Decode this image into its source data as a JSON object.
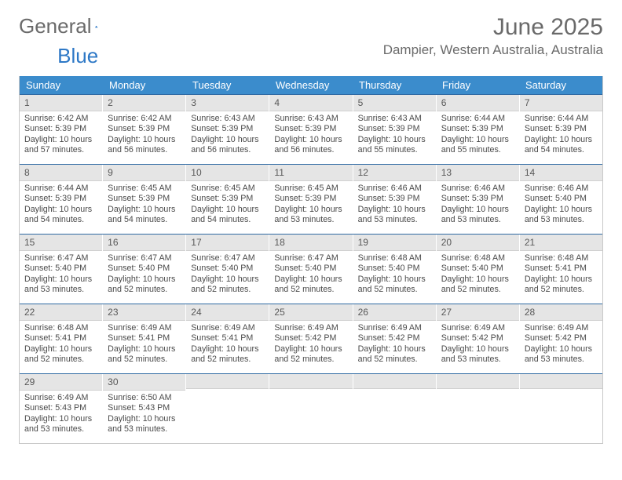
{
  "brand": {
    "word1": "General",
    "word2": "Blue",
    "accent_color": "#2d78c6"
  },
  "header": {
    "title": "June 2025",
    "location": "Dampier, Western Australia, Australia"
  },
  "calendar": {
    "day_headers": [
      "Sunday",
      "Monday",
      "Tuesday",
      "Wednesday",
      "Thursday",
      "Friday",
      "Saturday"
    ],
    "header_bg": "#3b8ccc",
    "header_fg": "#ffffff",
    "row_divider": "#2f6aa3",
    "datebar_bg": "#e5e5e5",
    "cell_label_prefixes": {
      "sunrise": "Sunrise: ",
      "sunset": "Sunset: ",
      "daylight_prefix": "Daylight: ",
      "hours_word": " hours",
      "minutes_suffix": " minutes."
    },
    "days": [
      {
        "n": 1,
        "sunrise": "6:42 AM",
        "sunset": "5:39 PM",
        "day_h": 10,
        "day_m": 57
      },
      {
        "n": 2,
        "sunrise": "6:42 AM",
        "sunset": "5:39 PM",
        "day_h": 10,
        "day_m": 56
      },
      {
        "n": 3,
        "sunrise": "6:43 AM",
        "sunset": "5:39 PM",
        "day_h": 10,
        "day_m": 56
      },
      {
        "n": 4,
        "sunrise": "6:43 AM",
        "sunset": "5:39 PM",
        "day_h": 10,
        "day_m": 56
      },
      {
        "n": 5,
        "sunrise": "6:43 AM",
        "sunset": "5:39 PM",
        "day_h": 10,
        "day_m": 55
      },
      {
        "n": 6,
        "sunrise": "6:44 AM",
        "sunset": "5:39 PM",
        "day_h": 10,
        "day_m": 55
      },
      {
        "n": 7,
        "sunrise": "6:44 AM",
        "sunset": "5:39 PM",
        "day_h": 10,
        "day_m": 54
      },
      {
        "n": 8,
        "sunrise": "6:44 AM",
        "sunset": "5:39 PM",
        "day_h": 10,
        "day_m": 54
      },
      {
        "n": 9,
        "sunrise": "6:45 AM",
        "sunset": "5:39 PM",
        "day_h": 10,
        "day_m": 54
      },
      {
        "n": 10,
        "sunrise": "6:45 AM",
        "sunset": "5:39 PM",
        "day_h": 10,
        "day_m": 54
      },
      {
        "n": 11,
        "sunrise": "6:45 AM",
        "sunset": "5:39 PM",
        "day_h": 10,
        "day_m": 53
      },
      {
        "n": 12,
        "sunrise": "6:46 AM",
        "sunset": "5:39 PM",
        "day_h": 10,
        "day_m": 53
      },
      {
        "n": 13,
        "sunrise": "6:46 AM",
        "sunset": "5:39 PM",
        "day_h": 10,
        "day_m": 53
      },
      {
        "n": 14,
        "sunrise": "6:46 AM",
        "sunset": "5:40 PM",
        "day_h": 10,
        "day_m": 53
      },
      {
        "n": 15,
        "sunrise": "6:47 AM",
        "sunset": "5:40 PM",
        "day_h": 10,
        "day_m": 53
      },
      {
        "n": 16,
        "sunrise": "6:47 AM",
        "sunset": "5:40 PM",
        "day_h": 10,
        "day_m": 52
      },
      {
        "n": 17,
        "sunrise": "6:47 AM",
        "sunset": "5:40 PM",
        "day_h": 10,
        "day_m": 52
      },
      {
        "n": 18,
        "sunrise": "6:47 AM",
        "sunset": "5:40 PM",
        "day_h": 10,
        "day_m": 52
      },
      {
        "n": 19,
        "sunrise": "6:48 AM",
        "sunset": "5:40 PM",
        "day_h": 10,
        "day_m": 52
      },
      {
        "n": 20,
        "sunrise": "6:48 AM",
        "sunset": "5:40 PM",
        "day_h": 10,
        "day_m": 52
      },
      {
        "n": 21,
        "sunrise": "6:48 AM",
        "sunset": "5:41 PM",
        "day_h": 10,
        "day_m": 52
      },
      {
        "n": 22,
        "sunrise": "6:48 AM",
        "sunset": "5:41 PM",
        "day_h": 10,
        "day_m": 52
      },
      {
        "n": 23,
        "sunrise": "6:49 AM",
        "sunset": "5:41 PM",
        "day_h": 10,
        "day_m": 52
      },
      {
        "n": 24,
        "sunrise": "6:49 AM",
        "sunset": "5:41 PM",
        "day_h": 10,
        "day_m": 52
      },
      {
        "n": 25,
        "sunrise": "6:49 AM",
        "sunset": "5:42 PM",
        "day_h": 10,
        "day_m": 52
      },
      {
        "n": 26,
        "sunrise": "6:49 AM",
        "sunset": "5:42 PM",
        "day_h": 10,
        "day_m": 52
      },
      {
        "n": 27,
        "sunrise": "6:49 AM",
        "sunset": "5:42 PM",
        "day_h": 10,
        "day_m": 53
      },
      {
        "n": 28,
        "sunrise": "6:49 AM",
        "sunset": "5:42 PM",
        "day_h": 10,
        "day_m": 53
      },
      {
        "n": 29,
        "sunrise": "6:49 AM",
        "sunset": "5:43 PM",
        "day_h": 10,
        "day_m": 53
      },
      {
        "n": 30,
        "sunrise": "6:50 AM",
        "sunset": "5:43 PM",
        "day_h": 10,
        "day_m": 53
      }
    ],
    "first_weekday_index": 0,
    "trailing_empty": 5
  }
}
